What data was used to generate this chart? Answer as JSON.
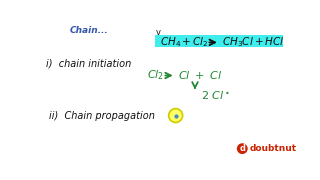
{
  "bg_color": "#ffffff",
  "top_label_color": "#3355aa",
  "top_label_text": "Chain",
  "v_marker": "v",
  "highlight_color": "#00e8e8",
  "highlight_alpha": 0.75,
  "eq_top_left": "CH₄ + Cl₂",
  "eq_top_right": "CH₃Cl + HCl",
  "dark": "#111111",
  "green": "#228833",
  "step1_label": "i)  chain initiation",
  "step1_left": "Cl₂",
  "step1_right": "Cl  +  Cl",
  "step1_sub": "2  Cl•",
  "step2_label": "ii)  Chain propagation",
  "circle_face": "#ffff66",
  "circle_edge": "#cccc00",
  "circle_dot": "#4488cc",
  "doubtnut_red": "#cc2200",
  "logo_text": "doubtnut"
}
